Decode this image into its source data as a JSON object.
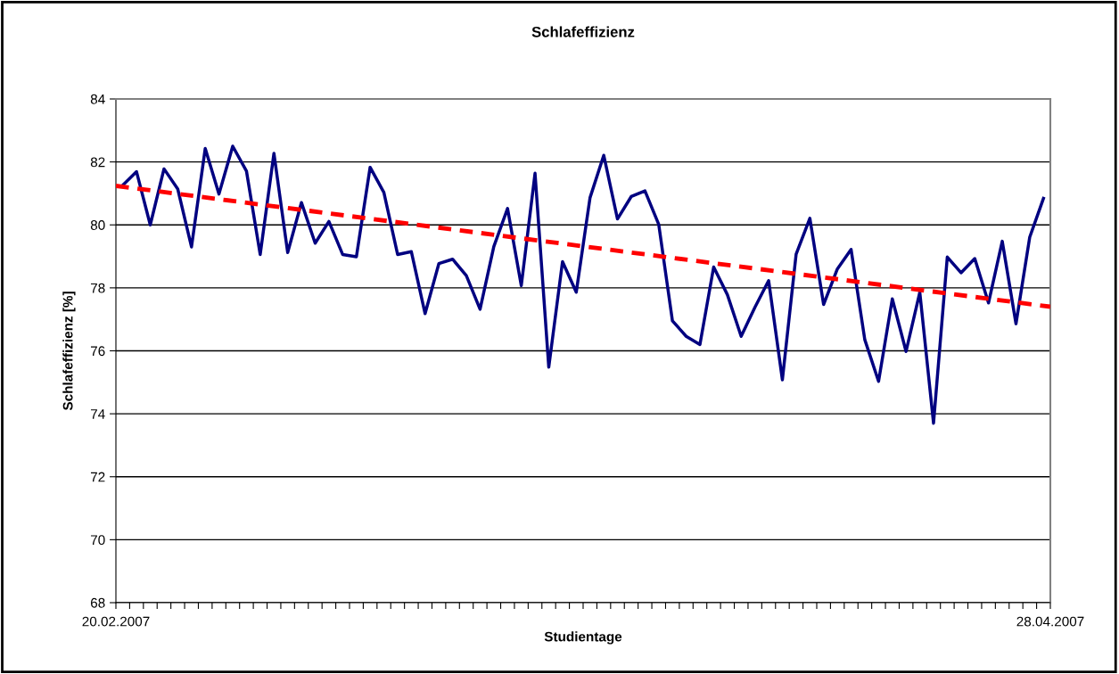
{
  "chart_data": {
    "type": "line",
    "title": "Schlafeffizienz",
    "xlabel": "Studientage",
    "ylabel": "Schlafeffizienz [%]",
    "x": [
      "2007-02-20",
      "2007-02-21",
      "2007-02-22",
      "2007-02-23",
      "2007-02-24",
      "2007-02-25",
      "2007-02-26",
      "2007-02-27",
      "2007-02-28",
      "2007-03-01",
      "2007-03-02",
      "2007-03-03",
      "2007-03-04",
      "2007-03-05",
      "2007-03-06",
      "2007-03-07",
      "2007-03-08",
      "2007-03-09",
      "2007-03-10",
      "2007-03-11",
      "2007-03-12",
      "2007-03-13",
      "2007-03-14",
      "2007-03-15",
      "2007-03-16",
      "2007-03-17",
      "2007-03-18",
      "2007-03-19",
      "2007-03-20",
      "2007-03-21",
      "2007-03-22",
      "2007-03-23",
      "2007-03-24",
      "2007-03-25",
      "2007-03-26",
      "2007-03-27",
      "2007-03-28",
      "2007-03-29",
      "2007-03-30",
      "2007-03-31",
      "2007-04-01",
      "2007-04-02",
      "2007-04-03",
      "2007-04-04",
      "2007-04-05",
      "2007-04-06",
      "2007-04-07",
      "2007-04-08",
      "2007-04-09",
      "2007-04-10",
      "2007-04-11",
      "2007-04-12",
      "2007-04-13",
      "2007-04-14",
      "2007-04-15",
      "2007-04-16",
      "2007-04-17",
      "2007-04-18",
      "2007-04-19",
      "2007-04-20",
      "2007-04-21",
      "2007-04-22",
      "2007-04-23",
      "2007-04-24",
      "2007-04-25",
      "2007-04-26",
      "2007-04-27",
      "2007-04-28"
    ],
    "series": [
      {
        "color": "#000080",
        "line_style": "solid",
        "values": [
          81.26,
          81.69,
          80.0,
          81.78,
          81.14,
          79.3,
          82.43,
          80.98,
          82.5,
          81.71,
          79.06,
          82.27,
          79.12,
          80.71,
          79.42,
          80.11,
          79.06,
          78.99,
          81.83,
          81.03,
          79.06,
          79.15,
          77.18,
          78.77,
          78.91,
          78.39,
          77.32,
          79.31,
          80.52,
          78.07,
          81.64,
          75.48,
          78.83,
          77.86,
          80.86,
          82.21,
          80.19,
          80.9,
          81.08,
          80.02,
          76.95,
          76.46,
          76.2,
          78.66,
          77.78,
          76.46,
          77.38,
          78.23,
          75.08,
          79.07,
          80.21,
          77.47,
          78.6,
          79.22,
          76.35,
          75.03,
          77.65,
          75.98,
          77.86,
          73.7,
          78.98,
          78.48,
          78.93,
          77.52,
          79.48,
          76.86,
          79.61,
          80.84
        ]
      },
      {
        "type": "line",
        "color": "#ff0000",
        "line_style": "dashed",
        "x": [
          "2007-02-19T12:00",
          "2007-04-28T12:00"
        ],
        "values": [
          81.24,
          77.4
        ]
      }
    ],
    "xlim": [
      "2007-02-19T12:00",
      "2007-04-28T12:00"
    ],
    "xticks": [
      {
        "value": "2007-02-19T12:00",
        "label": "20.02.2007"
      },
      {
        "value": "2007-02-20T12:00",
        "label": null
      },
      {
        "value": "2007-02-21T12:00",
        "label": null
      },
      {
        "value": "2007-02-22T12:00",
        "label": null
      },
      {
        "value": "2007-02-23T12:00",
        "label": null
      },
      {
        "value": "2007-02-24T12:00",
        "label": null
      },
      {
        "value": "2007-02-25T12:00",
        "label": null
      },
      {
        "value": "2007-02-26T12:00",
        "label": null
      },
      {
        "value": "2007-02-27T12:00",
        "label": null
      },
      {
        "value": "2007-02-28T12:00",
        "label": null
      },
      {
        "value": "2007-03-01T12:00",
        "label": null
      },
      {
        "value": "2007-03-02T12:00",
        "label": null
      },
      {
        "value": "2007-03-03T12:00",
        "label": null
      },
      {
        "value": "2007-03-04T12:00",
        "label": null
      },
      {
        "value": "2007-03-05T12:00",
        "label": null
      },
      {
        "value": "2007-03-06T12:00",
        "label": null
      },
      {
        "value": "2007-03-07T12:00",
        "label": null
      },
      {
        "value": "2007-03-08T12:00",
        "label": null
      },
      {
        "value": "2007-03-09T12:00",
        "label": null
      },
      {
        "value": "2007-03-10T12:00",
        "label": null
      },
      {
        "value": "2007-03-11T12:00",
        "label": null
      },
      {
        "value": "2007-03-12T12:00",
        "label": null
      },
      {
        "value": "2007-03-13T12:00",
        "label": null
      },
      {
        "value": "2007-03-14T12:00",
        "label": null
      },
      {
        "value": "2007-03-15T12:00",
        "label": null
      },
      {
        "value": "2007-03-16T12:00",
        "label": null
      },
      {
        "value": "2007-03-17T12:00",
        "label": null
      },
      {
        "value": "2007-03-18T12:00",
        "label": null
      },
      {
        "value": "2007-03-19T12:00",
        "label": null
      },
      {
        "value": "2007-03-20T12:00",
        "label": null
      },
      {
        "value": "2007-03-21T12:00",
        "label": null
      },
      {
        "value": "2007-03-22T12:00",
        "label": null
      },
      {
        "value": "2007-03-23T12:00",
        "label": null
      },
      {
        "value": "2007-03-24T12:00",
        "label": null
      },
      {
        "value": "2007-03-25T12:00",
        "label": null
      },
      {
        "value": "2007-03-26T12:00",
        "label": null
      },
      {
        "value": "2007-03-27T12:00",
        "label": null
      },
      {
        "value": "2007-03-28T12:00",
        "label": null
      },
      {
        "value": "2007-03-29T12:00",
        "label": null
      },
      {
        "value": "2007-03-30T12:00",
        "label": null
      },
      {
        "value": "2007-03-31T12:00",
        "label": null
      },
      {
        "value": "2007-04-01T12:00",
        "label": null
      },
      {
        "value": "2007-04-02T12:00",
        "label": null
      },
      {
        "value": "2007-04-03T12:00",
        "label": null
      },
      {
        "value": "2007-04-04T12:00",
        "label": null
      },
      {
        "value": "2007-04-05T12:00",
        "label": null
      },
      {
        "value": "2007-04-06T12:00",
        "label": null
      },
      {
        "value": "2007-04-07T12:00",
        "label": null
      },
      {
        "value": "2007-04-08T12:00",
        "label": null
      },
      {
        "value": "2007-04-09T12:00",
        "label": null
      },
      {
        "value": "2007-04-10T12:00",
        "label": null
      },
      {
        "value": "2007-04-11T12:00",
        "label": null
      },
      {
        "value": "2007-04-12T12:00",
        "label": null
      },
      {
        "value": "2007-04-13T12:00",
        "label": null
      },
      {
        "value": "2007-04-14T12:00",
        "label": null
      },
      {
        "value": "2007-04-15T12:00",
        "label": null
      },
      {
        "value": "2007-04-16T12:00",
        "label": null
      },
      {
        "value": "2007-04-17T12:00",
        "label": null
      },
      {
        "value": "2007-04-18T12:00",
        "label": null
      },
      {
        "value": "2007-04-19T12:00",
        "label": null
      },
      {
        "value": "2007-04-20T12:00",
        "label": null
      },
      {
        "value": "2007-04-21T12:00",
        "label": null
      },
      {
        "value": "2007-04-22T12:00",
        "label": null
      },
      {
        "value": "2007-04-23T12:00",
        "label": null
      },
      {
        "value": "2007-04-24T12:00",
        "label": null
      },
      {
        "value": "2007-04-25T12:00",
        "label": null
      },
      {
        "value": "2007-04-26T12:00",
        "label": null
      },
      {
        "value": "2007-04-27T12:00",
        "label": null
      },
      {
        "value": "2007-04-28T12:00",
        "label": "28.04.2007"
      }
    ],
    "ylim": [
      68,
      84
    ],
    "yticks": [
      68,
      70,
      72,
      74,
      76,
      78,
      80,
      82,
      84
    ],
    "grid": "y",
    "legend": false,
    "marker": "none"
  }
}
